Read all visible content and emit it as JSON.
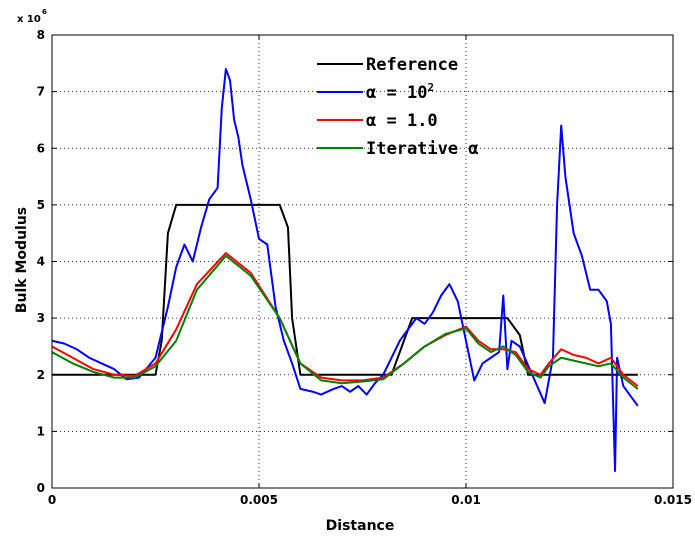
{
  "chart_data": {
    "type": "line",
    "xlabel": "Distance",
    "ylabel": "Bulk Modulus",
    "y_multiplier_label": "x 10",
    "y_multiplier_exponent": "6",
    "xlim": [
      0,
      0.015
    ],
    "ylim": [
      0,
      8
    ],
    "x_ticks": [
      0,
      0.005,
      0.01,
      0.015
    ],
    "x_tick_labels": [
      "0",
      "0.005",
      "0.01",
      "0.015"
    ],
    "y_ticks": [
      0,
      1,
      2,
      3,
      4,
      5,
      6,
      7,
      8
    ],
    "y_tick_labels": [
      "0",
      "1",
      "2",
      "3",
      "4",
      "5",
      "6",
      "7",
      "8"
    ],
    "grid": true,
    "legend_position": "top-center",
    "series": [
      {
        "name": "Reference",
        "legend_text": "Reference",
        "legend_prefix": "",
        "legend_sup": "",
        "color": "#000000",
        "x": [
          0,
          0.0025,
          0.00265,
          0.0028,
          0.003,
          0.0055,
          0.0057,
          0.0058,
          0.006,
          0.0082,
          0.0084,
          0.0087,
          0.011,
          0.0113,
          0.0115,
          0.01415
        ],
        "y": [
          2,
          2,
          2.6,
          4.5,
          5,
          5,
          4.6,
          3,
          2,
          2,
          2.4,
          3,
          3,
          2.7,
          2,
          2
        ]
      },
      {
        "name": "alpha = 10^2",
        "legend_text": " = 10",
        "legend_prefix": "α",
        "legend_sup": "2",
        "color": "#0000ff",
        "x": [
          0,
          0.0003,
          0.0006,
          0.0009,
          0.0012,
          0.0015,
          0.0018,
          0.0021,
          0.0025,
          0.0028,
          0.003,
          0.0032,
          0.0034,
          0.0036,
          0.0038,
          0.004,
          0.0041,
          0.0042,
          0.0043,
          0.0044,
          0.0045,
          0.0046,
          0.0048,
          0.005,
          0.0052,
          0.0054,
          0.0056,
          0.0058,
          0.006,
          0.0063,
          0.0065,
          0.0068,
          0.007,
          0.0072,
          0.0074,
          0.0076,
          0.0078,
          0.008,
          0.0082,
          0.0084,
          0.0086,
          0.0088,
          0.009,
          0.0092,
          0.0094,
          0.0096,
          0.0098,
          0.01,
          0.0102,
          0.0104,
          0.0106,
          0.0108,
          0.0109,
          0.011,
          0.0111,
          0.0113,
          0.0116,
          0.0119,
          0.0121,
          0.0122,
          0.0123,
          0.0124,
          0.0126,
          0.0128,
          0.013,
          0.0132,
          0.0134,
          0.0135,
          0.0136,
          0.01365,
          0.0138,
          0.01415
        ],
        "y": [
          2.6,
          2.55,
          2.45,
          2.3,
          2.2,
          2.1,
          1.92,
          1.95,
          2.3,
          3.2,
          3.9,
          4.3,
          4.0,
          4.6,
          5.1,
          5.3,
          6.7,
          7.4,
          7.2,
          6.5,
          6.2,
          5.7,
          5.1,
          4.4,
          4.3,
          3.2,
          2.6,
          2.2,
          1.75,
          1.7,
          1.65,
          1.75,
          1.8,
          1.7,
          1.8,
          1.65,
          1.85,
          2.0,
          2.3,
          2.6,
          2.8,
          3.0,
          2.9,
          3.1,
          3.4,
          3.6,
          3.3,
          2.6,
          1.9,
          2.2,
          2.3,
          2.4,
          3.4,
          2.1,
          2.6,
          2.5,
          2.0,
          1.5,
          2.3,
          5.0,
          6.4,
          5.5,
          4.5,
          4.1,
          3.5,
          3.5,
          3.3,
          2.9,
          0.3,
          2.3,
          1.8,
          1.45
        ]
      },
      {
        "name": "alpha = 1.0",
        "legend_text": " = 1.0",
        "legend_prefix": "α",
        "legend_sup": "",
        "color": "#ff0000",
        "x": [
          0,
          0.0005,
          0.001,
          0.0015,
          0.002,
          0.0025,
          0.003,
          0.0035,
          0.0042,
          0.0048,
          0.0055,
          0.006,
          0.0065,
          0.007,
          0.0075,
          0.008,
          0.0085,
          0.009,
          0.0095,
          0.01,
          0.0103,
          0.0106,
          0.0109,
          0.0112,
          0.0115,
          0.0118,
          0.012,
          0.0123,
          0.0126,
          0.0129,
          0.0132,
          0.0135,
          0.0138,
          0.01415
        ],
        "y": [
          2.5,
          2.3,
          2.1,
          2.0,
          1.98,
          2.2,
          2.8,
          3.6,
          4.15,
          3.8,
          3.0,
          2.2,
          1.95,
          1.9,
          1.9,
          1.95,
          2.2,
          2.5,
          2.7,
          2.85,
          2.6,
          2.45,
          2.45,
          2.4,
          2.1,
          2.0,
          2.2,
          2.45,
          2.35,
          2.3,
          2.2,
          2.3,
          2.0,
          1.8
        ]
      },
      {
        "name": "Iterative alpha",
        "legend_text": "Iterative ",
        "legend_prefix": "",
        "legend_suffix": "α",
        "legend_sup": "",
        "color": "#008000",
        "x": [
          0,
          0.0005,
          0.001,
          0.0015,
          0.002,
          0.0025,
          0.003,
          0.0035,
          0.0042,
          0.0048,
          0.0055,
          0.006,
          0.0065,
          0.007,
          0.0075,
          0.008,
          0.0085,
          0.009,
          0.0095,
          0.01,
          0.0103,
          0.0106,
          0.0109,
          0.0112,
          0.0115,
          0.0118,
          0.012,
          0.0123,
          0.0126,
          0.0129,
          0.0132,
          0.0135,
          0.0138,
          0.01415
        ],
        "y": [
          2.4,
          2.2,
          2.05,
          1.95,
          1.95,
          2.15,
          2.6,
          3.5,
          4.1,
          3.75,
          3.0,
          2.2,
          1.9,
          1.85,
          1.88,
          1.92,
          2.2,
          2.5,
          2.72,
          2.82,
          2.55,
          2.4,
          2.5,
          2.35,
          2.05,
          1.95,
          2.15,
          2.3,
          2.25,
          2.2,
          2.15,
          2.2,
          1.95,
          1.75
        ]
      }
    ]
  }
}
